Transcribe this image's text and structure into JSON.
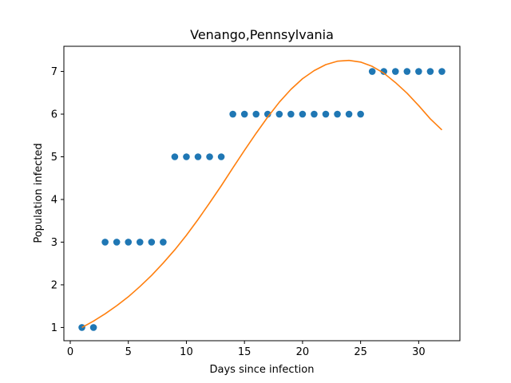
{
  "chart_data": {
    "type": "scatter",
    "title": "Venango,Pennsylvania",
    "xlabel": "Days since infection",
    "ylabel": "Population infected",
    "xlim": [
      -0.55,
      33.55
    ],
    "ylim": [
      0.69,
      7.59
    ],
    "xticks": [
      0,
      5,
      10,
      15,
      20,
      25,
      30
    ],
    "yticks": [
      1,
      2,
      3,
      4,
      5,
      6,
      7
    ],
    "grid": false,
    "series": [
      {
        "kind": "scatter",
        "color": "#1f77b4",
        "x": [
          1,
          2,
          3,
          4,
          5,
          6,
          7,
          8,
          9,
          10,
          11,
          12,
          13,
          14,
          15,
          16,
          17,
          18,
          19,
          20,
          21,
          22,
          23,
          24,
          25,
          26,
          27,
          28,
          29,
          30,
          31,
          32
        ],
        "y": [
          1,
          1,
          3,
          3,
          3,
          3,
          3,
          3,
          5,
          5,
          5,
          5,
          5,
          6,
          6,
          6,
          6,
          6,
          6,
          6,
          6,
          6,
          6,
          6,
          6,
          7,
          7,
          7,
          7,
          7,
          7,
          7
        ]
      },
      {
        "kind": "line",
        "color": "#ff7f0e",
        "x": [
          1,
          2,
          3,
          4,
          5,
          6,
          7,
          8,
          9,
          10,
          11,
          12,
          13,
          14,
          15,
          16,
          17,
          18,
          19,
          20,
          21,
          22,
          23,
          24,
          25,
          26,
          27,
          28,
          29,
          30,
          31,
          32
        ],
        "y": [
          1.0,
          1.15,
          1.32,
          1.51,
          1.72,
          1.96,
          2.22,
          2.51,
          2.82,
          3.16,
          3.53,
          3.92,
          4.32,
          4.74,
          5.15,
          5.55,
          5.93,
          6.28,
          6.58,
          6.83,
          7.02,
          7.16,
          7.24,
          7.26,
          7.22,
          7.12,
          6.96,
          6.74,
          6.49,
          6.2,
          5.89,
          5.63
        ]
      }
    ]
  }
}
